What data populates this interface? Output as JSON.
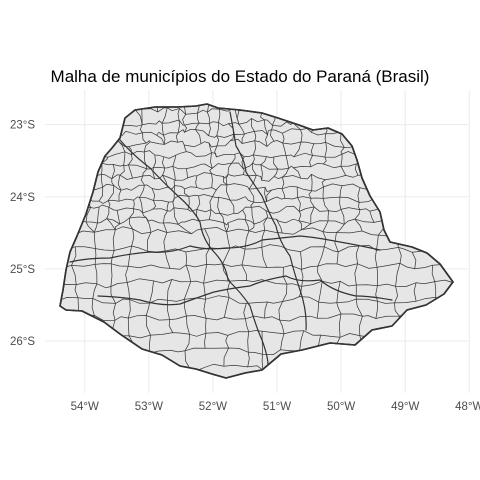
{
  "title": "Malha de municípios do Estado do Paraná (Brasil)",
  "map": {
    "region": "Paraná",
    "fill_color": "#e6e6e6",
    "border_color": "#333333",
    "grid_color": "#ebebeb",
    "background": "#ffffff",
    "grid": true,
    "extent": {
      "lon": [
        -54.62,
        -48.02
      ],
      "lat": [
        -26.72,
        -22.52
      ]
    },
    "lat_ticks": [
      {
        "value": -23,
        "label": "23°S"
      },
      {
        "value": -24,
        "label": "24°S"
      },
      {
        "value": -25,
        "label": "25°S"
      },
      {
        "value": -26,
        "label": "26°S"
      }
    ],
    "lon_ticks": [
      {
        "value": -54,
        "label": "54°W"
      },
      {
        "value": -53,
        "label": "53°W"
      },
      {
        "value": -52,
        "label": "52°W"
      },
      {
        "value": -51,
        "label": "51°W"
      },
      {
        "value": -50,
        "label": "50°W"
      },
      {
        "value": -49,
        "label": "49°W"
      },
      {
        "value": -48,
        "label": "48°W"
      }
    ]
  }
}
